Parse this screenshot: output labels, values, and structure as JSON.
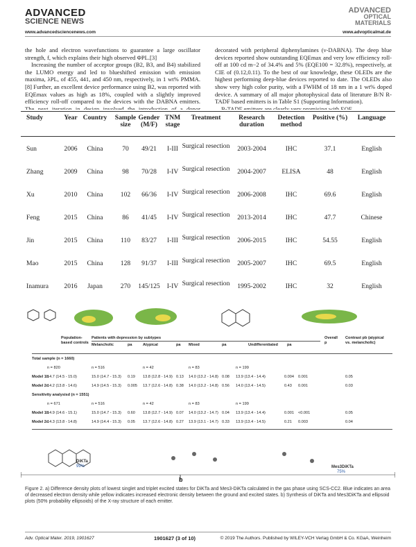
{
  "header": {
    "brand_left": "ADVANCED",
    "brand_left_sub": "SCIENCE NEWS",
    "url_left": "www.advancedsciencenews.com",
    "brand_right": "ADVANCED",
    "brand_right_sub": "OPTICAL MATERIALS",
    "url_right": "www.advopticalmat.de"
  },
  "body": {
    "left": [
      "the hole and electron wavefunctions to guarantee a large oscillator strength, f, which explains their high observed ΦPL.[3]",
      "Increasing the number of acceptor groups (B2, B3, and B4) stabilized the LUMO energy and led to blueshifted emission with emission maxima, λPL, of 455, 441, and 450 nm, respectively, in 1 wt% PMMA.[8] Further, an excellent device performance using B2, was reported with EQEmax values as high as 18%, coupled with a slightly improved efficiency roll-off compared to the devices with the DABNA emitters. The next iteration in design involved the introduction of a donor carbazole derivative and stabilizing tert-butyl groups about the"
    ],
    "right": [
      "decorated with peripheral diphenylamines (ν-DABNA). The deep blue devices reported show outstanding EQEmax and very low efficiency roll-off at 100 cd m−2 of 34.4% and 5% (EQE100 = 32.8%), respectively, at CIE of (0.12,0.11). To the best of our knowledge, these OLEDs are the highest performing deep-blue devices reported to date. The OLEDs also show very high color purity, with a FWHM of 18 nm in a 1 wt% doped device. A summary of all major photophysical data of literature B/N R-TADF based emitters is in Table S1 (Supporting Information).",
      "B-TADF emitters are clearly very promising with EQE"
    ]
  },
  "table1": {
    "columns": [
      "Study",
      "Year",
      "Country",
      "Sample size",
      "Gender (M/F)",
      "TNM stage",
      "Treatment",
      "Research duration",
      "Detection method",
      "Positive (%)",
      "Language"
    ],
    "rows": [
      [
        "Sun",
        "2006",
        "China",
        "70",
        "49/21",
        "I-III",
        "Surgical resection",
        "2003-2004",
        "IHC",
        "37.1",
        "English"
      ],
      [
        "Zhang",
        "2009",
        "China",
        "98",
        "70/28",
        "I-IV",
        "Surgical resection",
        "2004-2007",
        "ELISA",
        "48",
        "English"
      ],
      [
        "Xu",
        "2010",
        "China",
        "102",
        "66/36",
        "I-IV",
        "Surgical resection",
        "2006-2008",
        "IHC",
        "69.6",
        "English"
      ],
      [
        "Feng",
        "2015",
        "China",
        "86",
        "41/45",
        "I-IV",
        "Surgical resection",
        "2013-2014",
        "IHC",
        "47.7",
        "Chinese"
      ],
      [
        "Jin",
        "2015",
        "China",
        "110",
        "83/27",
        "I-III",
        "Surgical resection",
        "2006-2015",
        "IHC",
        "54.55",
        "English"
      ],
      [
        "Mao",
        "2015",
        "China",
        "128",
        "91/37",
        "I-III",
        "Surgical resection",
        "2005-2007",
        "IHC",
        "69.5",
        "English"
      ],
      [
        "Inamura",
        "2016",
        "Japan",
        "270",
        "145/125",
        "I-IV",
        "Surgical resection",
        "1995-2002",
        "IHC",
        "32",
        "English"
      ]
    ]
  },
  "table2": {
    "controls_header": "Population-based controls",
    "group_header": "Patients with depression by subtypes",
    "overall_header": "Overall p",
    "contrast_header": "Contrast pb (atypical vs. melancholic)",
    "subheaders": [
      "Melancholic",
      "pa",
      "Atypical",
      "pa",
      "Mixed",
      "pa",
      "Undifferentiated",
      "pa"
    ],
    "sections": [
      {
        "title": "Total sample (n = 1660)",
        "counts": [
          "n = 820",
          "n = 516",
          "n = 42",
          "n = 83",
          "n = 199"
        ],
        "rows": [
          {
            "label": "Model 1b",
            "cells": [
              "14.7 (14.5 - 15.0)",
              "15.0 (14.7 - 15.3)",
              "0.19",
              "13.8 (12.8 - 14.9)",
              "0.13",
              "14.0 (13.2 - 14.8)",
              "0.08",
              "13.9 (13.4 - 14.4)",
              "0.004",
              "0.001",
              "0.05"
            ]
          },
          {
            "label": "Model 2c",
            "cells": [
              "14.2 (13.8 - 14.6)",
              "14.9 (14.5 - 15.3)",
              "0.005",
              "13.7 (12.6 - 14.8)",
              "0.38",
              "14.0 (13.2 - 14.8)",
              "0.56",
              "14.0 (13.4 - 14.5)",
              "0.43",
              "0.001",
              "0.03"
            ]
          }
        ]
      },
      {
        "title": "Sensitivity analysisd (n = 1551)",
        "counts": [
          "n = 671",
          "n = 516",
          "n = 42",
          "n = 83",
          "n = 199"
        ],
        "rows": [
          {
            "label": "Model 1b",
            "cells": [
              "14.9 (14.6 - 15.1)",
              "15.0 (14.7 - 15.3)",
              "0.60",
              "13.8 (12.7 - 14.9)",
              "0.07",
              "14.0 (13.2 - 14.7)",
              "0.04",
              "13.9 (13.4 - 14.4)",
              "0.001",
              "<0.001",
              "0.05"
            ]
          },
          {
            "label": "Model 2c",
            "cells": [
              "14.3 (13.8 - 14.8)",
              "14.9 (14.4 - 15.3)",
              "0.05",
              "13.7 (12.6 - 14.8)",
              "0.27",
              "13.9 (13.1 - 14.7)",
              "0.33",
              "13.9 (13.4 - 14.5)",
              "0.21",
              "0.003",
              "0.04"
            ]
          }
        ]
      }
    ]
  },
  "figure_b": {
    "label_1": "DiKTa",
    "yield_1": "99%",
    "label_2": "Mes3DiKTa",
    "yield_2": "75%",
    "panel": "b"
  },
  "caption": "Figure 2. a) Difference density plots of lowest singlet and triplet excited states for DiKTa and Mes3-DiKTa calculated in the gas phase using SCS-CC2. Blue indicates an area of decreased electron density while yellow indicates increased electronic density between the ground and excited states. b) Synthesis of DiKTa and Mes3DiKTa and ellipsoid plots (50% probability ellipsoids) of the X-ray structure of each emitter.",
  "footer": {
    "journal": "Adv. Optical Mater. 2019, 1901627",
    "page": "1901627 (3 of 10)",
    "copyright": "© 2019 The Authors. Published by WILEY-VCH Verlag GmbH & Co. KGaA, Weinheim"
  }
}
